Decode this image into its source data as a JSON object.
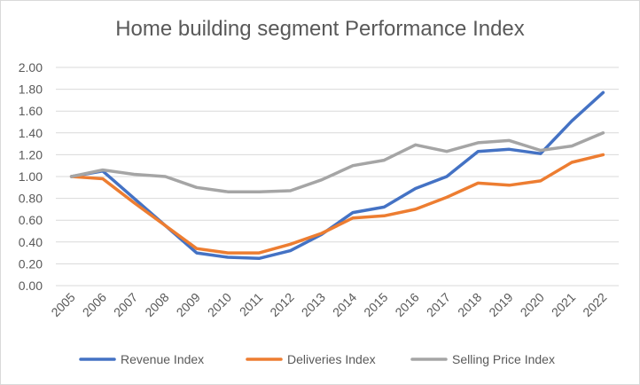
{
  "chart_data": {
    "type": "line",
    "title": "Home building segment Performance Index",
    "xlabel": "",
    "ylabel": "",
    "categories": [
      "2005",
      "2006",
      "2007",
      "2008",
      "2009",
      "2010",
      "2011",
      "2012",
      "2013",
      "2014",
      "2015",
      "2016",
      "2017",
      "2018",
      "2019",
      "2020",
      "2021",
      "2022"
    ],
    "ylim": [
      0,
      2
    ],
    "yticks": [
      "0.00",
      "0.20",
      "0.40",
      "0.60",
      "0.80",
      "1.00",
      "1.20",
      "1.40",
      "1.60",
      "1.80",
      "2.00"
    ],
    "grid": true,
    "legend_position": "bottom",
    "series": [
      {
        "name": "Revenue Index",
        "color": "#4472C4",
        "values": [
          1.0,
          1.05,
          0.8,
          0.55,
          0.3,
          0.26,
          0.25,
          0.32,
          0.47,
          0.67,
          0.72,
          0.89,
          1.0,
          1.23,
          1.25,
          1.21,
          1.51,
          1.77
        ]
      },
      {
        "name": "Deliveries Index",
        "color": "#ED7D31",
        "values": [
          1.0,
          0.98,
          0.76,
          0.55,
          0.34,
          0.3,
          0.3,
          0.38,
          0.48,
          0.62,
          0.64,
          0.7,
          0.81,
          0.94,
          0.92,
          0.96,
          1.13,
          1.2
        ]
      },
      {
        "name": "Selling Price Index",
        "color": "#A5A5A5",
        "values": [
          1.0,
          1.06,
          1.02,
          1.0,
          0.9,
          0.86,
          0.86,
          0.87,
          0.97,
          1.1,
          1.15,
          1.29,
          1.23,
          1.31,
          1.33,
          1.24,
          1.28,
          1.4
        ]
      }
    ]
  }
}
